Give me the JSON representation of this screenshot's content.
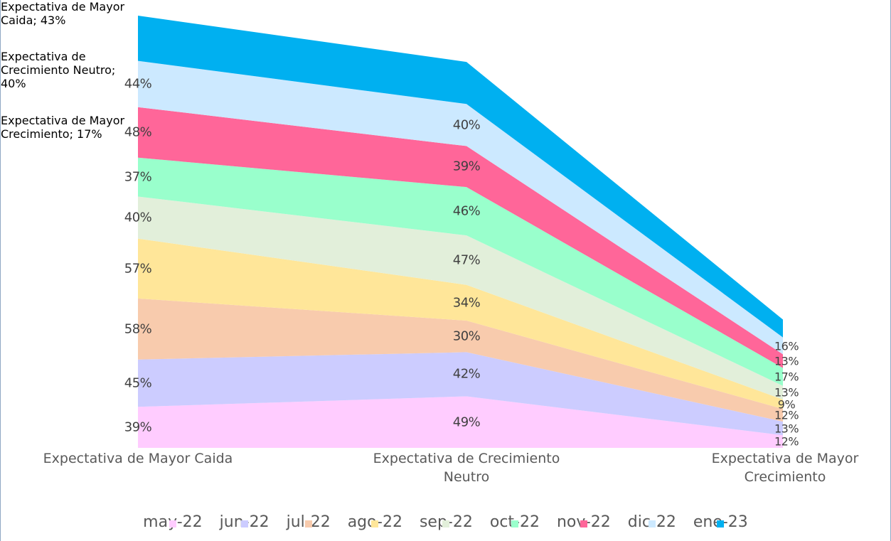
{
  "chart_data": {
    "type": "stacked_area",
    "categories": [
      "Expectativa de Mayor Caida",
      "Expectativa de Crecimiento Neutro",
      "Expectativa de Mayor Crecimiento"
    ],
    "series": [
      {
        "name": "may-22",
        "color": "#ffccff",
        "values": [
          39,
          49,
          12
        ],
        "value_labels": [
          "39%",
          "49%",
          "12%"
        ]
      },
      {
        "name": "jun-22",
        "color": "#ccccff",
        "values": [
          45,
          42,
          13
        ],
        "value_labels": [
          "45%",
          "42%",
          "13%"
        ]
      },
      {
        "name": "jul-22",
        "color": "#f8cbad",
        "values": [
          58,
          30,
          12
        ],
        "value_labels": [
          "58%",
          "30%",
          "12%"
        ]
      },
      {
        "name": "ago-22",
        "color": "#ffe699",
        "values": [
          57,
          34,
          9
        ],
        "value_labels": [
          "57%",
          "34%",
          "9%"
        ]
      },
      {
        "name": "sep-22",
        "color": "#e2efda",
        "values": [
          40,
          47,
          13
        ],
        "value_labels": [
          "40%",
          "47%",
          "13%"
        ]
      },
      {
        "name": "oct-22",
        "color": "#99ffcc",
        "values": [
          37,
          46,
          17
        ],
        "value_labels": [
          "37%",
          "46%",
          "17%"
        ]
      },
      {
        "name": "nov-22",
        "color": "#ff6699",
        "values": [
          48,
          39,
          13
        ],
        "value_labels": [
          "48%",
          "39%",
          "13%"
        ]
      },
      {
        "name": "dic-22",
        "color": "#cce9ff",
        "values": [
          44,
          40,
          16
        ],
        "value_labels": [
          "44%",
          "40%",
          "16%"
        ]
      },
      {
        "name": "ene-23",
        "color": "#00b0f0",
        "values": [
          43,
          40,
          17
        ],
        "value_labels": [
          "Expectativa de Mayor Caida; 43%",
          "Expectativa de Crecimiento Neutro; 40%",
          "Expectativa de Mayor Crecimiento; 17%"
        ]
      }
    ]
  }
}
